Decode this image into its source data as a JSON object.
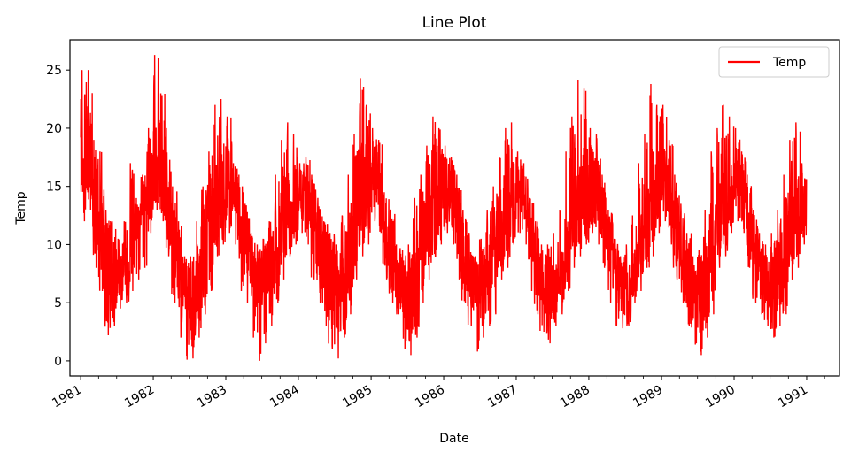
{
  "chart_data": {
    "type": "line",
    "title": "Line Plot",
    "xlabel": "Date",
    "ylabel": "Temp",
    "xlim": [
      "1980-11-08",
      "1991-06-15"
    ],
    "ylim": [
      -1.3,
      27.6
    ],
    "x_ticks": [
      "1981",
      "1982",
      "1983",
      "1984",
      "1985",
      "1986",
      "1987",
      "1988",
      "1989",
      "1990",
      "1991"
    ],
    "y_ticks": [
      0,
      5,
      10,
      15,
      20,
      25
    ],
    "legend": {
      "position": "top-right",
      "entries": [
        "Temp"
      ]
    },
    "colors": {
      "series": "#ff0000"
    },
    "series": [
      {
        "name": "Temp",
        "frequency": "monthly envelope of daily readings",
        "x": [
          "1981-01",
          "1981-02",
          "1981-03",
          "1981-04",
          "1981-05",
          "1981-06",
          "1981-07",
          "1981-08",
          "1981-09",
          "1981-10",
          "1981-11",
          "1981-12",
          "1982-01",
          "1982-02",
          "1982-03",
          "1982-04",
          "1982-05",
          "1982-06",
          "1982-07",
          "1982-08",
          "1982-09",
          "1982-10",
          "1982-11",
          "1982-12",
          "1983-01",
          "1983-02",
          "1983-03",
          "1983-04",
          "1983-05",
          "1983-06",
          "1983-07",
          "1983-08",
          "1983-09",
          "1983-10",
          "1983-11",
          "1983-12",
          "1984-01",
          "1984-02",
          "1984-03",
          "1984-04",
          "1984-05",
          "1984-06",
          "1984-07",
          "1984-08",
          "1984-09",
          "1984-10",
          "1984-11",
          "1984-12",
          "1985-01",
          "1985-02",
          "1985-03",
          "1985-04",
          "1985-05",
          "1985-06",
          "1985-07",
          "1985-08",
          "1985-09",
          "1985-10",
          "1985-11",
          "1985-12",
          "1986-01",
          "1986-02",
          "1986-03",
          "1986-04",
          "1986-05",
          "1986-06",
          "1986-07",
          "1986-08",
          "1986-09",
          "1986-10",
          "1986-11",
          "1986-12",
          "1987-01",
          "1987-02",
          "1987-03",
          "1987-04",
          "1987-05",
          "1987-06",
          "1987-07",
          "1987-08",
          "1987-09",
          "1987-10",
          "1987-11",
          "1987-12",
          "1988-01",
          "1988-02",
          "1988-03",
          "1988-04",
          "1988-05",
          "1988-06",
          "1988-07",
          "1988-08",
          "1988-09",
          "1988-10",
          "1988-11",
          "1988-12",
          "1989-01",
          "1989-02",
          "1989-03",
          "1989-04",
          "1989-05",
          "1989-06",
          "1989-07",
          "1989-08",
          "1989-09",
          "1989-10",
          "1989-11",
          "1989-12",
          "1990-01",
          "1990-02",
          "1990-03",
          "1990-04",
          "1990-05",
          "1990-06",
          "1990-07",
          "1990-08",
          "1990-09",
          "1990-10",
          "1990-11",
          "1990-12"
        ],
        "max": [
          25.0,
          25.0,
          19.0,
          18.0,
          13.0,
          12.0,
          10.5,
          12.0,
          17.0,
          14.0,
          16.0,
          20.0,
          26.3,
          23.0,
          20.0,
          15.0,
          12.0,
          9.0,
          9.0,
          12.0,
          15.0,
          18.0,
          22.0,
          22.5,
          21.0,
          17.0,
          16.0,
          13.5,
          11.0,
          10.0,
          10.5,
          12.0,
          16.0,
          19.0,
          20.5,
          19.5,
          17.0,
          17.5,
          16.0,
          14.0,
          12.0,
          11.0,
          10.0,
          12.5,
          16.0,
          19.5,
          24.3,
          22.0,
          20.0,
          19.0,
          14.5,
          13.0,
          10.0,
          9.5,
          10.0,
          14.0,
          16.0,
          18.5,
          21.0,
          20.0,
          18.5,
          17.5,
          16.0,
          13.0,
          11.0,
          9.0,
          10.5,
          13.0,
          15.0,
          17.5,
          20.0,
          20.5,
          18.0,
          17.0,
          14.0,
          12.0,
          10.0,
          10.0,
          11.0,
          13.0,
          18.0,
          21.0,
          24.1,
          23.4,
          20.0,
          19.5,
          16.0,
          13.0,
          10.5,
          9.0,
          10.0,
          12.5,
          17.0,
          19.5,
          23.8,
          22.0,
          22.0,
          19.0,
          16.0,
          13.5,
          11.0,
          9.0,
          9.5,
          13.0,
          18.0,
          20.0,
          22.0,
          21.0,
          20.0,
          18.0,
          16.0,
          13.0,
          11.0,
          10.0,
          11.0,
          13.0,
          16.0,
          19.0,
          20.5,
          17.0
        ],
        "min": [
          12.0,
          13.0,
          8.0,
          6.0,
          2.2,
          3.0,
          4.5,
          5.0,
          6.0,
          7.0,
          8.0,
          11.0,
          13.0,
          12.0,
          9.0,
          5.0,
          2.0,
          0.1,
          0.2,
          2.0,
          4.0,
          6.0,
          9.0,
          10.0,
          11.0,
          10.0,
          6.0,
          5.0,
          2.0,
          0.0,
          1.5,
          3.0,
          5.0,
          7.0,
          9.0,
          10.0,
          11.0,
          10.0,
          7.0,
          5.0,
          3.0,
          1.0,
          0.2,
          2.0,
          4.0,
          7.0,
          9.0,
          10.0,
          12.0,
          11.0,
          7.0,
          5.0,
          4.0,
          1.0,
          0.5,
          2.0,
          5.0,
          7.0,
          9.0,
          10.0,
          11.0,
          10.0,
          7.0,
          5.0,
          3.0,
          0.8,
          2.0,
          3.0,
          4.0,
          7.0,
          8.0,
          10.0,
          11.0,
          10.0,
          6.0,
          4.0,
          2.5,
          1.5,
          3.0,
          4.0,
          6.0,
          8.0,
          9.0,
          10.0,
          11.0,
          10.0,
          8.0,
          5.0,
          3.0,
          2.8,
          3.0,
          5.0,
          6.0,
          8.0,
          9.0,
          11.0,
          12.0,
          10.0,
          7.0,
          5.0,
          3.0,
          1.4,
          0.5,
          2.0,
          4.0,
          8.0,
          9.0,
          11.0,
          12.0,
          11.0,
          8.0,
          5.0,
          4.0,
          3.0,
          2.0,
          3.0,
          4.0,
          7.0,
          8.0,
          10.0
        ],
        "mean": [
          17.7,
          18.5,
          13.5,
          11.5,
          8.5,
          7.0,
          7.0,
          8.0,
          10.0,
          12.0,
          14.0,
          15.5,
          17.0,
          17.0,
          14.0,
          10.5,
          8.0,
          6.5,
          5.0,
          6.5,
          9.0,
          11.5,
          13.5,
          15.0,
          16.0,
          14.5,
          12.0,
          10.0,
          8.0,
          7.0,
          6.5,
          7.5,
          9.5,
          12.0,
          13.0,
          14.0,
          14.5,
          14.0,
          12.0,
          10.0,
          7.5,
          6.5,
          6.0,
          7.5,
          9.5,
          12.0,
          14.5,
          15.0,
          15.0,
          14.0,
          11.0,
          9.0,
          7.0,
          6.0,
          6.0,
          7.5,
          10.0,
          12.5,
          14.0,
          14.5,
          15.0,
          14.0,
          12.0,
          10.0,
          7.5,
          6.5,
          6.5,
          7.5,
          10.0,
          11.5,
          13.0,
          14.0,
          15.5,
          14.0,
          11.0,
          9.0,
          7.0,
          6.0,
          6.0,
          7.0,
          9.5,
          11.5,
          13.5,
          14.5,
          15.0,
          14.0,
          12.0,
          10.0,
          8.0,
          7.0,
          6.5,
          7.5,
          10.0,
          12.0,
          14.0,
          15.0,
          15.5,
          14.5,
          12.0,
          9.5,
          7.5,
          6.0,
          5.5,
          7.0,
          9.5,
          12.0,
          13.5,
          14.5,
          15.5,
          14.5,
          12.0,
          10.0,
          8.0,
          7.0,
          6.5,
          7.5,
          9.5,
          11.5,
          13.0,
          13.5
        ]
      }
    ]
  }
}
